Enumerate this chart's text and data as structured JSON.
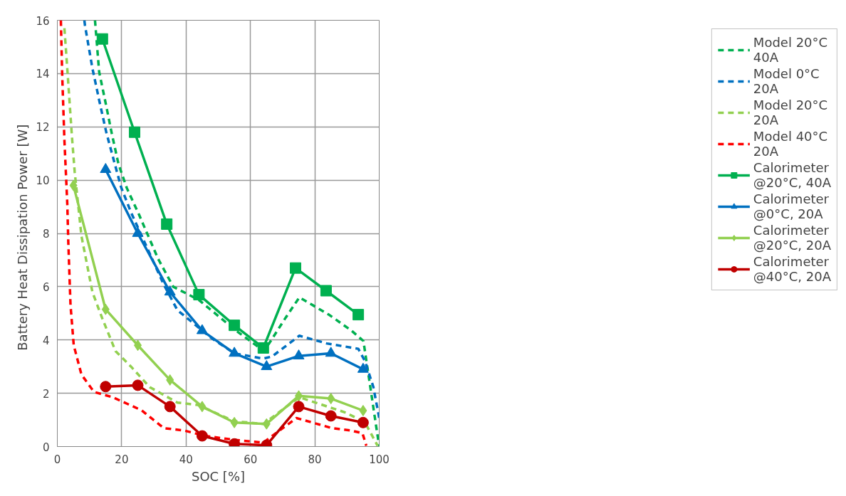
{
  "chart_data": {
    "type": "line",
    "xlabel": "SOC [%]",
    "ylabel": "Battery Heat Dissipation  Power  [W]",
    "xlim": [
      0,
      100
    ],
    "xticks": [
      0,
      20,
      40,
      60,
      80,
      100
    ],
    "ylim": [
      0,
      16
    ],
    "yticks": [
      0,
      2,
      4,
      6,
      8,
      10,
      12,
      14,
      16
    ],
    "grid": true,
    "legend": "right",
    "series": [
      {
        "name": "Model 20°C 40A",
        "color": "#00b050",
        "line_style": "dashed",
        "marker": "none",
        "x": [
          11.7,
          13.0,
          15,
          16.9,
          19,
          21.6,
          25.4,
          31.3,
          36,
          44,
          55,
          64,
          65.8,
          70.9,
          75.2,
          84.5,
          91.3,
          95.1,
          100
        ],
        "values": [
          16,
          14.06,
          12.9,
          11.76,
          10.6,
          9.7,
          8.7,
          7.05,
          6.0,
          5.5,
          4.4,
          3.6,
          3.87,
          4.83,
          5.6,
          4.94,
          4.36,
          3.96,
          0
        ]
      },
      {
        "name": "Model 0°C 20A",
        "color": "#0070c0",
        "line_style": "dashed",
        "marker": "none",
        "x": [
          8.4,
          8.6,
          10.9,
          13.0,
          15.2,
          17.2,
          19.8,
          22.9,
          33,
          37.3,
          47.9,
          55,
          64,
          66.7,
          75.2,
          83.7,
          93.5,
          95.6,
          98.2,
          100
        ],
        "values": [
          16,
          15.8,
          14.2,
          13.0,
          11.8,
          10.9,
          9.74,
          8.79,
          6.1,
          5.12,
          4.07,
          3.5,
          3.3,
          3.38,
          4.16,
          3.87,
          3.67,
          3.2,
          2.23,
          1.07
        ]
      },
      {
        "name": "Model 20°C 20A",
        "color": "#92d050",
        "line_style": "dashed",
        "marker": "none",
        "x": [
          2.2,
          3.2,
          4.5,
          5.4,
          7.5,
          10.9,
          13.9,
          18.1,
          22.9,
          28.7,
          37.3,
          43.7,
          55,
          64,
          75.2,
          89.7,
          95.6,
          99.5
        ],
        "values": [
          15.7,
          14.0,
          11.7,
          10.3,
          7.9,
          5.8,
          4.83,
          3.58,
          3.0,
          2.23,
          1.65,
          1.56,
          0.95,
          0.85,
          1.85,
          1.27,
          0.9,
          0.03
        ]
      },
      {
        "name": "Model 40°C 20A",
        "color": "#ff0000",
        "line_style": "dashed",
        "marker": "none",
        "x": [
          1.1,
          1.5,
          2.2,
          3.1,
          3.4,
          4.1,
          5.1,
          7.5,
          11.4,
          17.2,
          26.2,
          33.1,
          39.5,
          45.9,
          55,
          64,
          74.3,
          85.4,
          91.3,
          94.8,
          96
        ],
        "values": [
          16,
          14,
          11.5,
          9.1,
          7.7,
          5.3,
          3.8,
          2.7,
          2.05,
          1.85,
          1.36,
          0.69,
          0.6,
          0.4,
          0.25,
          0.15,
          1.07,
          0.69,
          0.6,
          0.5,
          0.03
        ]
      },
      {
        "name": "Calorimeter @20°C, 40A",
        "color": "#00b050",
        "line_style": "solid",
        "marker": "square",
        "x": [
          14,
          24,
          34,
          44,
          55,
          64,
          74,
          83.5,
          93.5
        ],
        "values": [
          15.3,
          11.8,
          8.35,
          5.7,
          4.55,
          3.7,
          6.7,
          5.85,
          4.95
        ]
      },
      {
        "name": "Calorimeter @0°C, 20A",
        "color": "#0070c0",
        "line_style": "solid",
        "marker": "triangle",
        "x": [
          15,
          25,
          35,
          45,
          55,
          65,
          75,
          85,
          95
        ],
        "values": [
          10.4,
          8.0,
          5.8,
          4.35,
          3.5,
          3.0,
          3.4,
          3.5,
          2.9
        ]
      },
      {
        "name": "Calorimeter @20°C, 20A",
        "color": "#92d050",
        "line_style": "solid",
        "marker": "diamond",
        "x": [
          5,
          15,
          25,
          35,
          45,
          55,
          65,
          75,
          85,
          95
        ],
        "values": [
          9.8,
          5.15,
          3.8,
          2.5,
          1.5,
          0.9,
          0.85,
          1.9,
          1.8,
          1.35
        ]
      },
      {
        "name": "Calorimeter @40°C, 20A",
        "color": "#c00000",
        "line_style": "solid",
        "marker": "circle",
        "x": [
          15,
          25,
          35,
          45,
          55,
          65,
          75,
          85,
          95
        ],
        "values": [
          2.25,
          2.3,
          1.5,
          0.4,
          0.1,
          0.05,
          1.5,
          1.15,
          0.9
        ]
      }
    ]
  }
}
